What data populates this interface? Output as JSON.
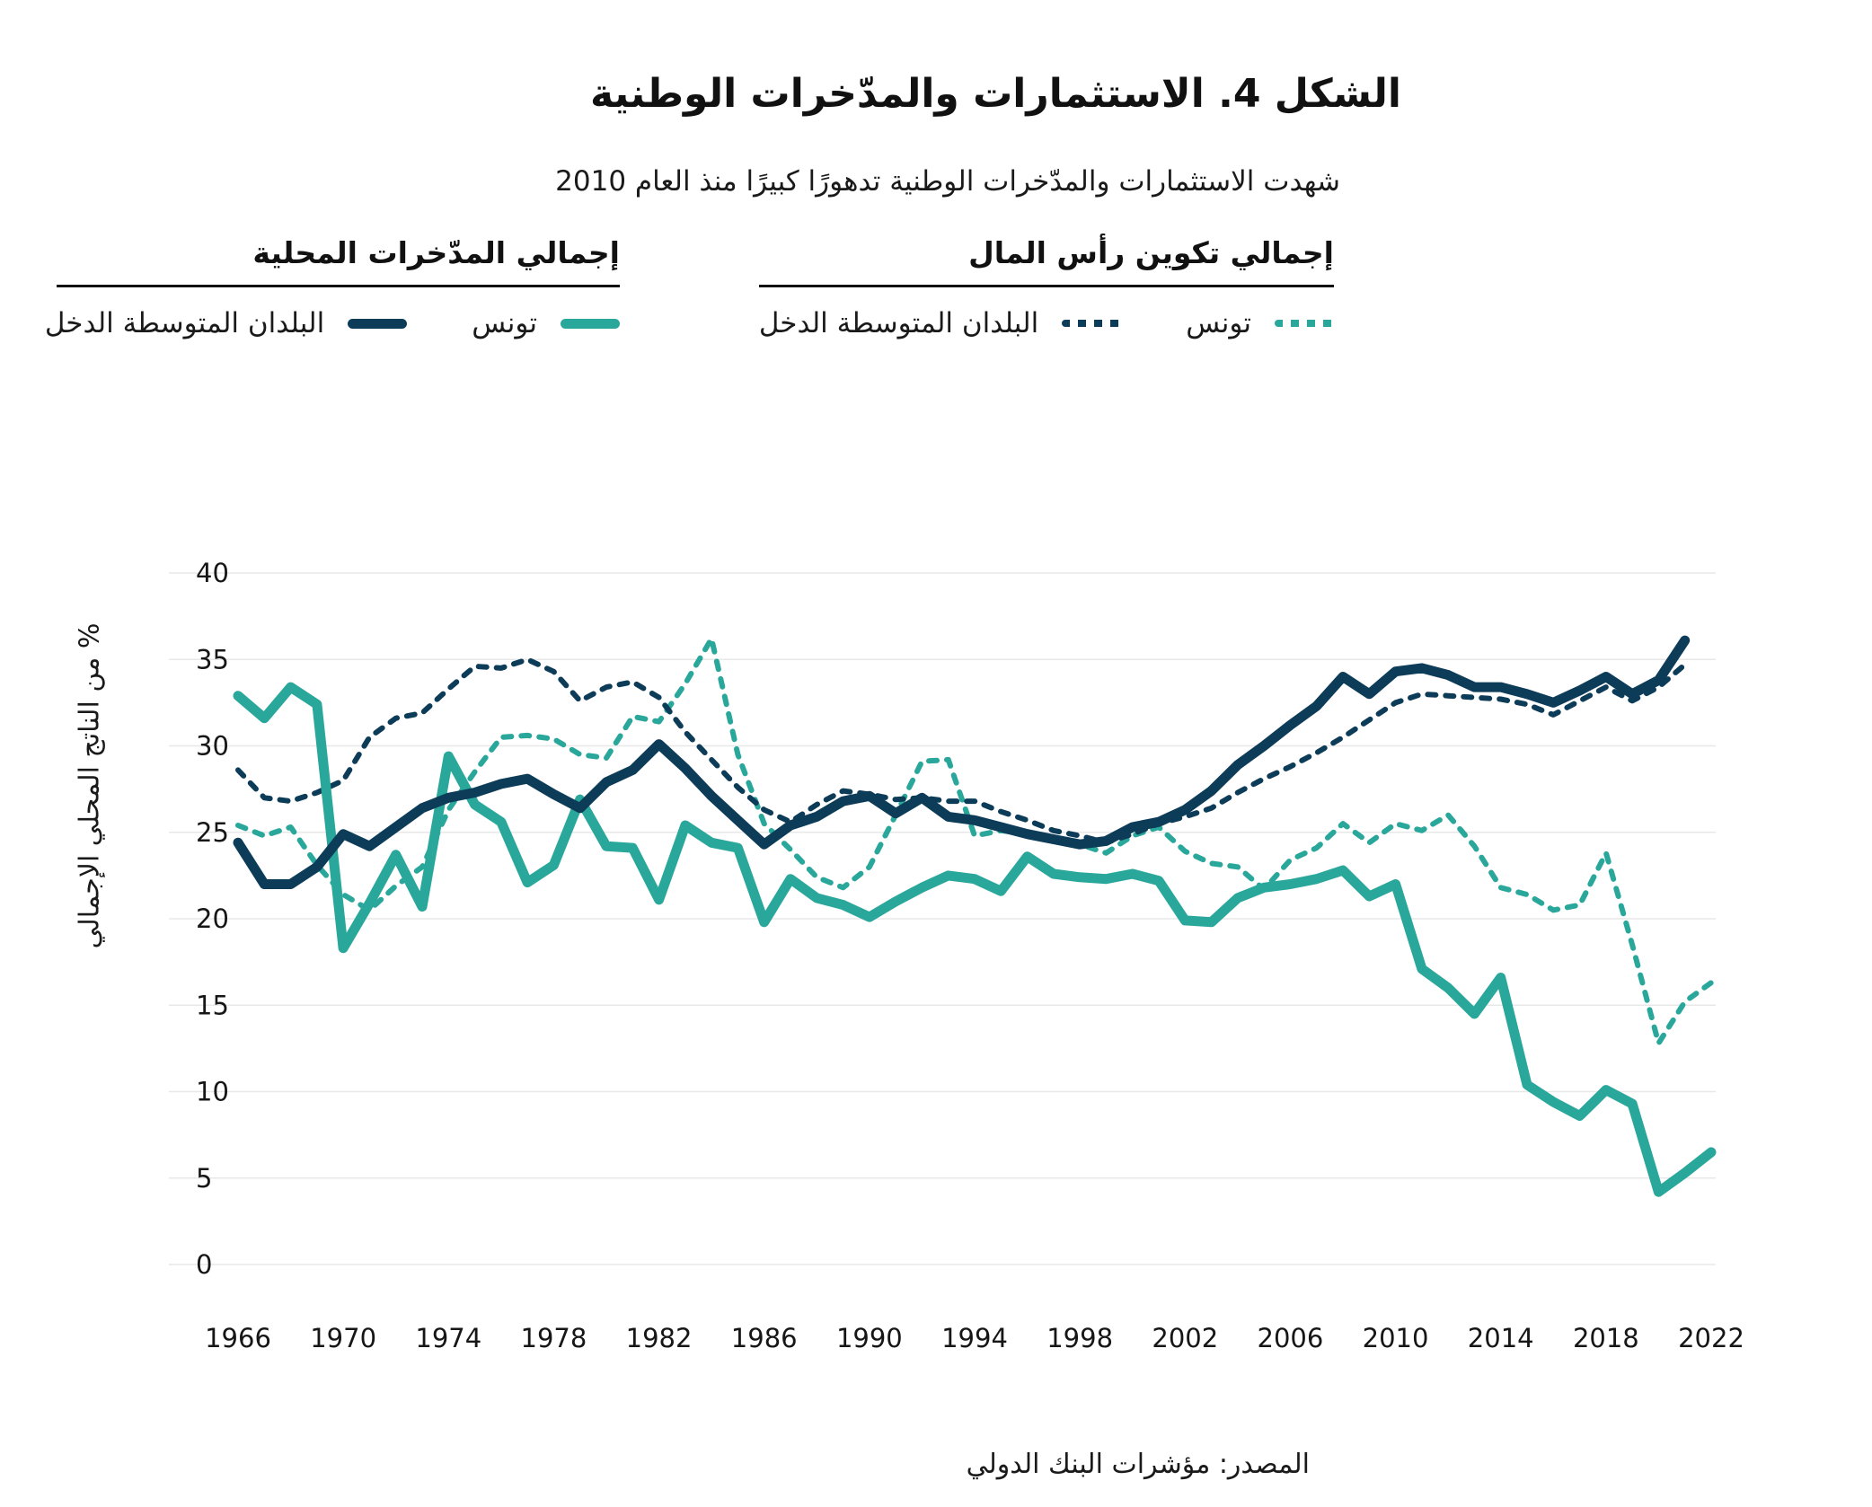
{
  "figure": {
    "title": "الشكل 4. الاستثمارات والمدّخرات الوطنية",
    "subtitle": "شهدت الاستثمارات والمدّخرات الوطنية تدهورًا كبيرًا منذ العام 2010",
    "source": "المصدر: مؤشرات البنك الدولي"
  },
  "colors": {
    "teal": "#2aa79b",
    "navy": "#0d3c59",
    "gridline": "#e8e8e8",
    "text": "#161616"
  },
  "legend": {
    "groups": [
      {
        "title": "إجمالي تكوين رأس المال",
        "items": [
          {
            "label": "تونس",
            "style": "dashed",
            "color": "#2aa79b"
          },
          {
            "label": "البلدان المتوسطة الدخل",
            "style": "dashed",
            "color": "#0d3c59"
          }
        ]
      },
      {
        "title": "إجمالي المدّخرات المحلية",
        "items": [
          {
            "label": "تونس",
            "style": "solid",
            "color": "#2aa79b"
          },
          {
            "label": "البلدان المتوسطة الدخل",
            "style": "solid",
            "color": "#0d3c59"
          }
        ]
      }
    ]
  },
  "chart_data": {
    "type": "line",
    "title": "الشكل 4. الاستثمارات والمدّخرات الوطنية",
    "xlabel": "",
    "ylabel": "% من الناتج المحلي الإجمالي",
    "ylim": [
      0,
      40
    ],
    "yticks": [
      0,
      5,
      10,
      15,
      20,
      25,
      30,
      35,
      40
    ],
    "xticks": [
      1966,
      1970,
      1974,
      1978,
      1982,
      1986,
      1990,
      1994,
      1998,
      2002,
      2006,
      2010,
      2014,
      2018,
      2022
    ],
    "grid": "horizontal",
    "legend_position": "top",
    "x": [
      1966,
      1967,
      1968,
      1969,
      1970,
      1971,
      1972,
      1973,
      1974,
      1975,
      1976,
      1977,
      1978,
      1979,
      1980,
      1981,
      1982,
      1983,
      1984,
      1985,
      1986,
      1987,
      1988,
      1989,
      1990,
      1991,
      1992,
      1993,
      1994,
      1995,
      1996,
      1997,
      1998,
      1999,
      2000,
      2001,
      2002,
      2003,
      2004,
      2005,
      2006,
      2007,
      2008,
      2009,
      2010,
      2011,
      2012,
      2013,
      2014,
      2015,
      2016,
      2017,
      2018,
      2019,
      2020,
      2021,
      2022
    ],
    "series": [
      {
        "id": "tunisia-capital-formation",
        "name": "تونس — إجمالي تكوين رأس المال",
        "group": "إجمالي تكوين رأس المال",
        "style": "dashed",
        "color": "#2aa79b",
        "values": [
          25.4,
          24.8,
          25.3,
          23.1,
          21.4,
          20.5,
          21.9,
          23.0,
          26.3,
          28.5,
          30.5,
          30.6,
          30.4,
          29.5,
          29.3,
          31.7,
          31.4,
          33.6,
          36.2,
          29.5,
          25.5,
          24.0,
          22.4,
          21.8,
          23.0,
          26.0,
          29.1,
          29.2,
          24.8,
          25.1,
          24.9,
          24.6,
          24.3,
          23.8,
          24.8,
          25.3,
          23.9,
          23.2,
          23.0,
          21.7,
          23.4,
          24.1,
          25.5,
          24.4,
          25.5,
          25.1,
          26.0,
          24.2,
          21.8,
          21.4,
          20.5,
          20.8,
          23.8,
          18.5,
          12.8,
          15.2,
          16.3
        ]
      },
      {
        "id": "mic-capital-formation",
        "name": "البلدان المتوسطة الدخل — إجمالي تكوين رأس المال",
        "group": "إجمالي تكوين رأس المال",
        "style": "dashed",
        "color": "#0d3c59",
        "values": [
          28.6,
          27.0,
          26.8,
          27.3,
          28.0,
          30.5,
          31.6,
          31.9,
          33.3,
          34.6,
          34.5,
          35.0,
          34.3,
          32.6,
          33.4,
          33.7,
          32.8,
          30.8,
          29.2,
          27.6,
          26.3,
          25.6,
          26.6,
          27.4,
          27.2,
          26.9,
          27.0,
          26.8,
          26.8,
          26.2,
          25.7,
          25.1,
          24.8,
          24.4,
          24.9,
          25.5,
          25.9,
          26.4,
          27.3,
          28.1,
          28.8,
          29.6,
          30.5,
          31.5,
          32.5,
          33.0,
          32.9,
          32.8,
          32.7,
          32.4,
          31.8,
          32.6,
          33.4,
          32.6,
          33.4,
          34.7,
          null
        ]
      },
      {
        "id": "tunisia-domestic-savings",
        "name": "تونس — إجمالي المدّخرات المحلية",
        "group": "إجمالي المدّخرات المحلية",
        "style": "solid",
        "color": "#2aa79b",
        "values": [
          32.9,
          31.6,
          33.4,
          32.4,
          18.3,
          20.9,
          23.7,
          20.7,
          29.4,
          26.6,
          25.6,
          22.1,
          23.1,
          26.9,
          24.2,
          24.1,
          21.1,
          25.4,
          24.4,
          24.1,
          19.8,
          22.3,
          21.2,
          20.8,
          20.1,
          21.0,
          21.8,
          22.5,
          22.3,
          21.6,
          23.6,
          22.6,
          22.4,
          22.3,
          22.6,
          22.2,
          19.9,
          19.8,
          21.2,
          21.8,
          22.0,
          22.3,
          22.8,
          21.3,
          22.0,
          17.1,
          16.0,
          14.5,
          16.6,
          10.4,
          9.4,
          8.6,
          10.1,
          9.3,
          4.2,
          5.3,
          6.5
        ]
      },
      {
        "id": "mic-domestic-savings",
        "name": "البلدان المتوسطة الدخل — إجمالي المدّخرات المحلية",
        "group": "إجمالي المدّخرات المحلية",
        "style": "solid",
        "color": "#0d3c59",
        "values": [
          24.4,
          22.0,
          22.0,
          23.0,
          24.9,
          24.2,
          25.3,
          26.4,
          27.0,
          27.3,
          27.8,
          28.1,
          27.2,
          26.4,
          27.9,
          28.6,
          30.1,
          28.7,
          27.1,
          25.7,
          24.3,
          25.4,
          25.9,
          26.8,
          27.1,
          26.1,
          27.0,
          25.9,
          25.7,
          25.3,
          24.9,
          24.6,
          24.3,
          24.5,
          25.3,
          25.6,
          26.3,
          27.4,
          28.9,
          30.0,
          31.2,
          32.3,
          34.0,
          33.0,
          34.3,
          34.5,
          34.1,
          33.4,
          33.4,
          33.0,
          32.5,
          33.2,
          34.0,
          33.0,
          33.8,
          36.1,
          null
        ]
      }
    ]
  }
}
